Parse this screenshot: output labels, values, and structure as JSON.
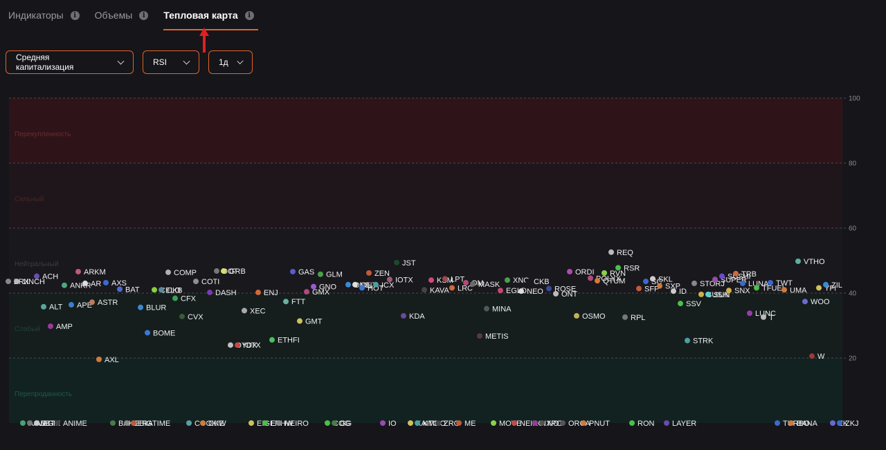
{
  "tabs": [
    {
      "label": "Индикаторы",
      "active": false
    },
    {
      "label": "Объемы",
      "active": false
    },
    {
      "label": "Тепловая карта",
      "active": true
    }
  ],
  "info_icon": "i",
  "filters": {
    "metric": "Средняя капитализация",
    "indicator": "RSI",
    "period": "1д"
  },
  "chart_data": {
    "type": "scatter",
    "ylim": [
      0,
      100
    ],
    "y_ticks": [
      20,
      40,
      60,
      80,
      100
    ],
    "zones": [
      {
        "label": "Перекупленность",
        "from": 80,
        "to": 100,
        "color": "#2e1419",
        "label_color": "#6b2a2e"
      },
      {
        "label": "Сильный",
        "from": 60,
        "to": 80,
        "color": "#1f161b",
        "label_color": "#4a2529"
      },
      {
        "label": "Нейтральный",
        "from": 40,
        "to": 60,
        "color": "#19181d",
        "label_color": "#3c3c42"
      },
      {
        "label": "Слабый",
        "from": 20,
        "to": 40,
        "color": "#151d1d",
        "label_color": "#244236"
      },
      {
        "label": "Перепроданность",
        "from": 0,
        "to": 20,
        "color": "#122221",
        "label_color": "#1f5a44"
      }
    ],
    "points": [
      [
        "ZRX",
        12,
        43.6,
        "#888888"
      ],
      [
        "1INCH",
        24,
        43.6,
        "#bbbbbb"
      ],
      [
        "ACH",
        53,
        45.2,
        "#6a4db0"
      ],
      [
        "ALT",
        63,
        35.8,
        "#5aa79a"
      ],
      [
        "ANKR",
        93,
        42.4,
        "#4ca87d"
      ],
      [
        "APE",
        103,
        36.4,
        "#3a7fd0"
      ],
      [
        "ARKM",
        113,
        46.6,
        "#c05a7a"
      ],
      [
        "AR",
        123,
        43.0,
        "#dddddd"
      ],
      [
        "ASTR",
        133,
        37.2,
        "#c07a5a"
      ],
      [
        "AMP",
        73,
        29.8,
        "#9b3a9b"
      ],
      [
        "AXL",
        143,
        19.6,
        "#d07a3a"
      ],
      [
        "AXS",
        153,
        43.2,
        "#3a6ad0"
      ],
      [
        "BAT",
        173,
        41.2,
        "#4a6ad0"
      ],
      [
        "BLUR",
        203,
        35.6,
        "#3a8ad0"
      ],
      [
        "BOME",
        213,
        27.8,
        "#3a7ad0"
      ],
      [
        "CELO",
        223,
        41.0,
        "#8ad03a"
      ],
      [
        "CKB",
        233,
        41.0,
        "#5a8a9a"
      ],
      [
        "COMP",
        243,
        46.4,
        "#b0b0b0"
      ],
      [
        "CFX",
        253,
        38.4,
        "#3aa05a"
      ],
      [
        "CVX",
        263,
        32.8,
        "#3a5a3a"
      ],
      [
        "COTI",
        283,
        43.6,
        "#909090"
      ],
      [
        "DASH",
        303,
        40.2,
        "#7a3ab0"
      ],
      [
        "DYDX",
        333,
        24.0,
        "#c0c0c0"
      ],
      [
        "IOTX",
        343,
        24.0,
        "#cc4444"
      ],
      [
        "XEC",
        353,
        34.6,
        "#aaaaaa"
      ],
      [
        "DOT",
        313,
        46.8,
        "#777777"
      ],
      [
        "GRB",
        323,
        46.8,
        "#dddd66"
      ],
      [
        "ENJ",
        373,
        40.2,
        "#d06a3a"
      ],
      [
        "ETHFI",
        393,
        25.6,
        "#4ac05a"
      ],
      [
        "FTT",
        413,
        37.4,
        "#6ab0a0"
      ],
      [
        "GMT",
        433,
        31.4,
        "#d0c05a"
      ],
      [
        "GAS",
        423,
        46.6,
        "#5a5ad0"
      ],
      [
        "GMX",
        443,
        40.4,
        "#b04a7a"
      ],
      [
        "GNO",
        453,
        42.0,
        "#9a5ad0"
      ],
      [
        "GLM",
        463,
        45.8,
        "#4aa04a"
      ],
      [
        "ONE",
        503,
        42.6,
        "#3a8ad0"
      ],
      [
        "ONT",
        513,
        42.6,
        "#e0e0e0"
      ],
      [
        "HOT",
        523,
        41.6,
        "#3a7ad0"
      ],
      [
        "ZEN",
        533,
        46.2,
        "#c05a3a"
      ],
      [
        "ICX",
        543,
        42.6,
        "#4aa0a0"
      ],
      [
        "IOTX",
        563,
        44.2,
        "#a05a7a"
      ],
      [
        "JST",
        573,
        49.4,
        "#1a4a2a"
      ],
      [
        "KDA",
        583,
        33.0,
        "#6a4a9a"
      ],
      [
        "KAVA",
        613,
        41.0,
        "#444444"
      ],
      [
        "KSM",
        623,
        44.0,
        "#d04a7a"
      ],
      [
        "LRC",
        653,
        41.6,
        "#d06a3a"
      ],
      [
        "LPT",
        643,
        44.4,
        "#9a4a4a"
      ],
      [
        "OM",
        673,
        43.2,
        "#b04a7a"
      ],
      [
        "MASK",
        683,
        42.8,
        "#6a6a6a"
      ],
      [
        "METIS",
        693,
        26.8,
        "#5a3a3a"
      ],
      [
        "MINA",
        703,
        35.2,
        "#555555"
      ],
      [
        "EGLD",
        723,
        40.8,
        "#c04a6a"
      ],
      [
        "XNO",
        733,
        44.0,
        "#4aa04a"
      ],
      [
        "NEO",
        753,
        40.6,
        "#dddddd"
      ],
      [
        "CKB",
        763,
        43.6,
        "#1a1a1a"
      ],
      [
        "ROSE",
        793,
        41.4,
        "#3a4a9a"
      ],
      [
        "ONT",
        803,
        39.8,
        "#bbbbbb"
      ],
      [
        "ORDI",
        823,
        46.6,
        "#b04ab0"
      ],
      [
        "OSMO",
        833,
        33.0,
        "#c0b05a"
      ],
      [
        "POLYX",
        853,
        44.6,
        "#b04a7a"
      ],
      [
        "QTUM",
        863,
        43.8,
        "#d07a3a"
      ],
      [
        "RVN",
        873,
        46.2,
        "#8ad04a"
      ],
      [
        "REQ",
        883,
        52.6,
        "#bbbbbb"
      ],
      [
        "RSR",
        893,
        47.8,
        "#4ac04a"
      ],
      [
        "RPL",
        903,
        32.6,
        "#777777"
      ],
      [
        "SFP",
        923,
        41.4,
        "#c05a3a"
      ],
      [
        "SC",
        933,
        43.6,
        "#3a6ad0"
      ],
      [
        "SKL",
        943,
        44.4,
        "#cccccc"
      ],
      [
        "SXP",
        953,
        42.2,
        "#d07a3a"
      ],
      [
        "ID",
        973,
        40.6,
        "#cccccc"
      ],
      [
        "SSV",
        983,
        36.8,
        "#4ac04a"
      ],
      [
        "STRK",
        993,
        25.4,
        "#4aa0a0"
      ],
      [
        "STORJ",
        1003,
        43.0,
        "#888888"
      ],
      [
        "SUSHI",
        1013,
        39.6,
        "#d0b04a"
      ],
      [
        "SUN",
        1023,
        39.6,
        "#5ad0d0"
      ],
      [
        "SNX",
        1053,
        40.8,
        "#d0b04a"
      ],
      [
        "SUPER",
        1033,
        44.2,
        "#9a4ab0"
      ],
      [
        "SUSHI",
        1043,
        45.2,
        "#6a4ad0"
      ],
      [
        "TRB",
        1063,
        46.0,
        "#d06a3a"
      ],
      [
        "LUNA",
        1073,
        43.0,
        "#3a6ad0"
      ],
      [
        "LUNC",
        1083,
        33.8,
        "#9a3ab0"
      ],
      [
        "TFUEL",
        1093,
        41.6,
        "#4ac04a"
      ],
      [
        "T",
        1103,
        32.6,
        "#bbbbbb"
      ],
      [
        "TWT",
        1113,
        43.2,
        "#3a6ad0"
      ],
      [
        "UMA",
        1133,
        41.0,
        "#d07a3a"
      ],
      [
        "VTHO",
        1153,
        49.8,
        "#5ab0a0"
      ],
      [
        "WOO",
        1163,
        37.4,
        "#6a6ad0"
      ],
      [
        "W",
        1173,
        20.6,
        "#9a3a3a"
      ],
      [
        "YFI",
        1183,
        41.6,
        "#d0c05a"
      ],
      [
        "ZIL",
        1193,
        42.6,
        "#3a8ad0"
      ],
      [
        "AAVE",
        33,
        0,
        "#4aa07a"
      ],
      [
        "ABBT",
        43,
        0,
        "#777777"
      ],
      [
        "AGIX",
        53,
        0,
        "#cccccc"
      ],
      [
        "ANIME",
        83,
        0,
        "#444444"
      ],
      [
        "BAKE",
        163,
        0,
        "#4a7a4a"
      ],
      [
        "BERA",
        183,
        0,
        "#888888"
      ],
      [
        "BIGTIME",
        193,
        0,
        "#c05a3a"
      ],
      [
        "COOKIE",
        273,
        0,
        "#5aa0a0"
      ],
      [
        "CKW",
        293,
        0,
        "#d07a3a"
      ],
      [
        "EIGEN",
        363,
        0,
        "#d0c05a"
      ],
      [
        "ETHW",
        383,
        0,
        "#4ac04a"
      ],
      [
        "HEIRO",
        403,
        0,
        "#888888"
      ],
      [
        "COG",
        473,
        0,
        "#4ac04a"
      ],
      [
        "GG",
        483,
        0,
        "#4a7a4a"
      ],
      [
        "IO",
        553,
        0,
        "#9a4ab0"
      ],
      [
        "KAITO",
        593,
        0,
        "#d0c05a"
      ],
      [
        "KMNO",
        603,
        0,
        "#4aa0a0"
      ],
      [
        "ZRO",
        633,
        0,
        "#444444"
      ],
      [
        "ME",
        663,
        0,
        "#c05a3a"
      ],
      [
        "MOVE",
        713,
        0,
        "#8ad04a"
      ],
      [
        "NEIRO",
        743,
        0,
        "#c04a4a"
      ],
      [
        "NXPC",
        773,
        0,
        "#9a3a9a"
      ],
      [
        "NOT",
        783,
        0,
        "#555555"
      ],
      [
        "ORCA",
        813,
        0,
        "#555555"
      ],
      [
        "PNUT",
        843,
        0,
        "#d07a3a"
      ],
      [
        "RON",
        913,
        0,
        "#4ac04a"
      ],
      [
        "LAYER",
        963,
        0,
        "#6a4ab0"
      ],
      [
        "TURBO",
        1123,
        0,
        "#3a6ad0"
      ],
      [
        "BANA",
        1143,
        0,
        "#d07a3a"
      ],
      [
        "ZK",
        1203,
        0,
        "#6a6ad0"
      ],
      [
        "ZKJ",
        1213,
        0,
        "#3a6ad0"
      ]
    ]
  }
}
